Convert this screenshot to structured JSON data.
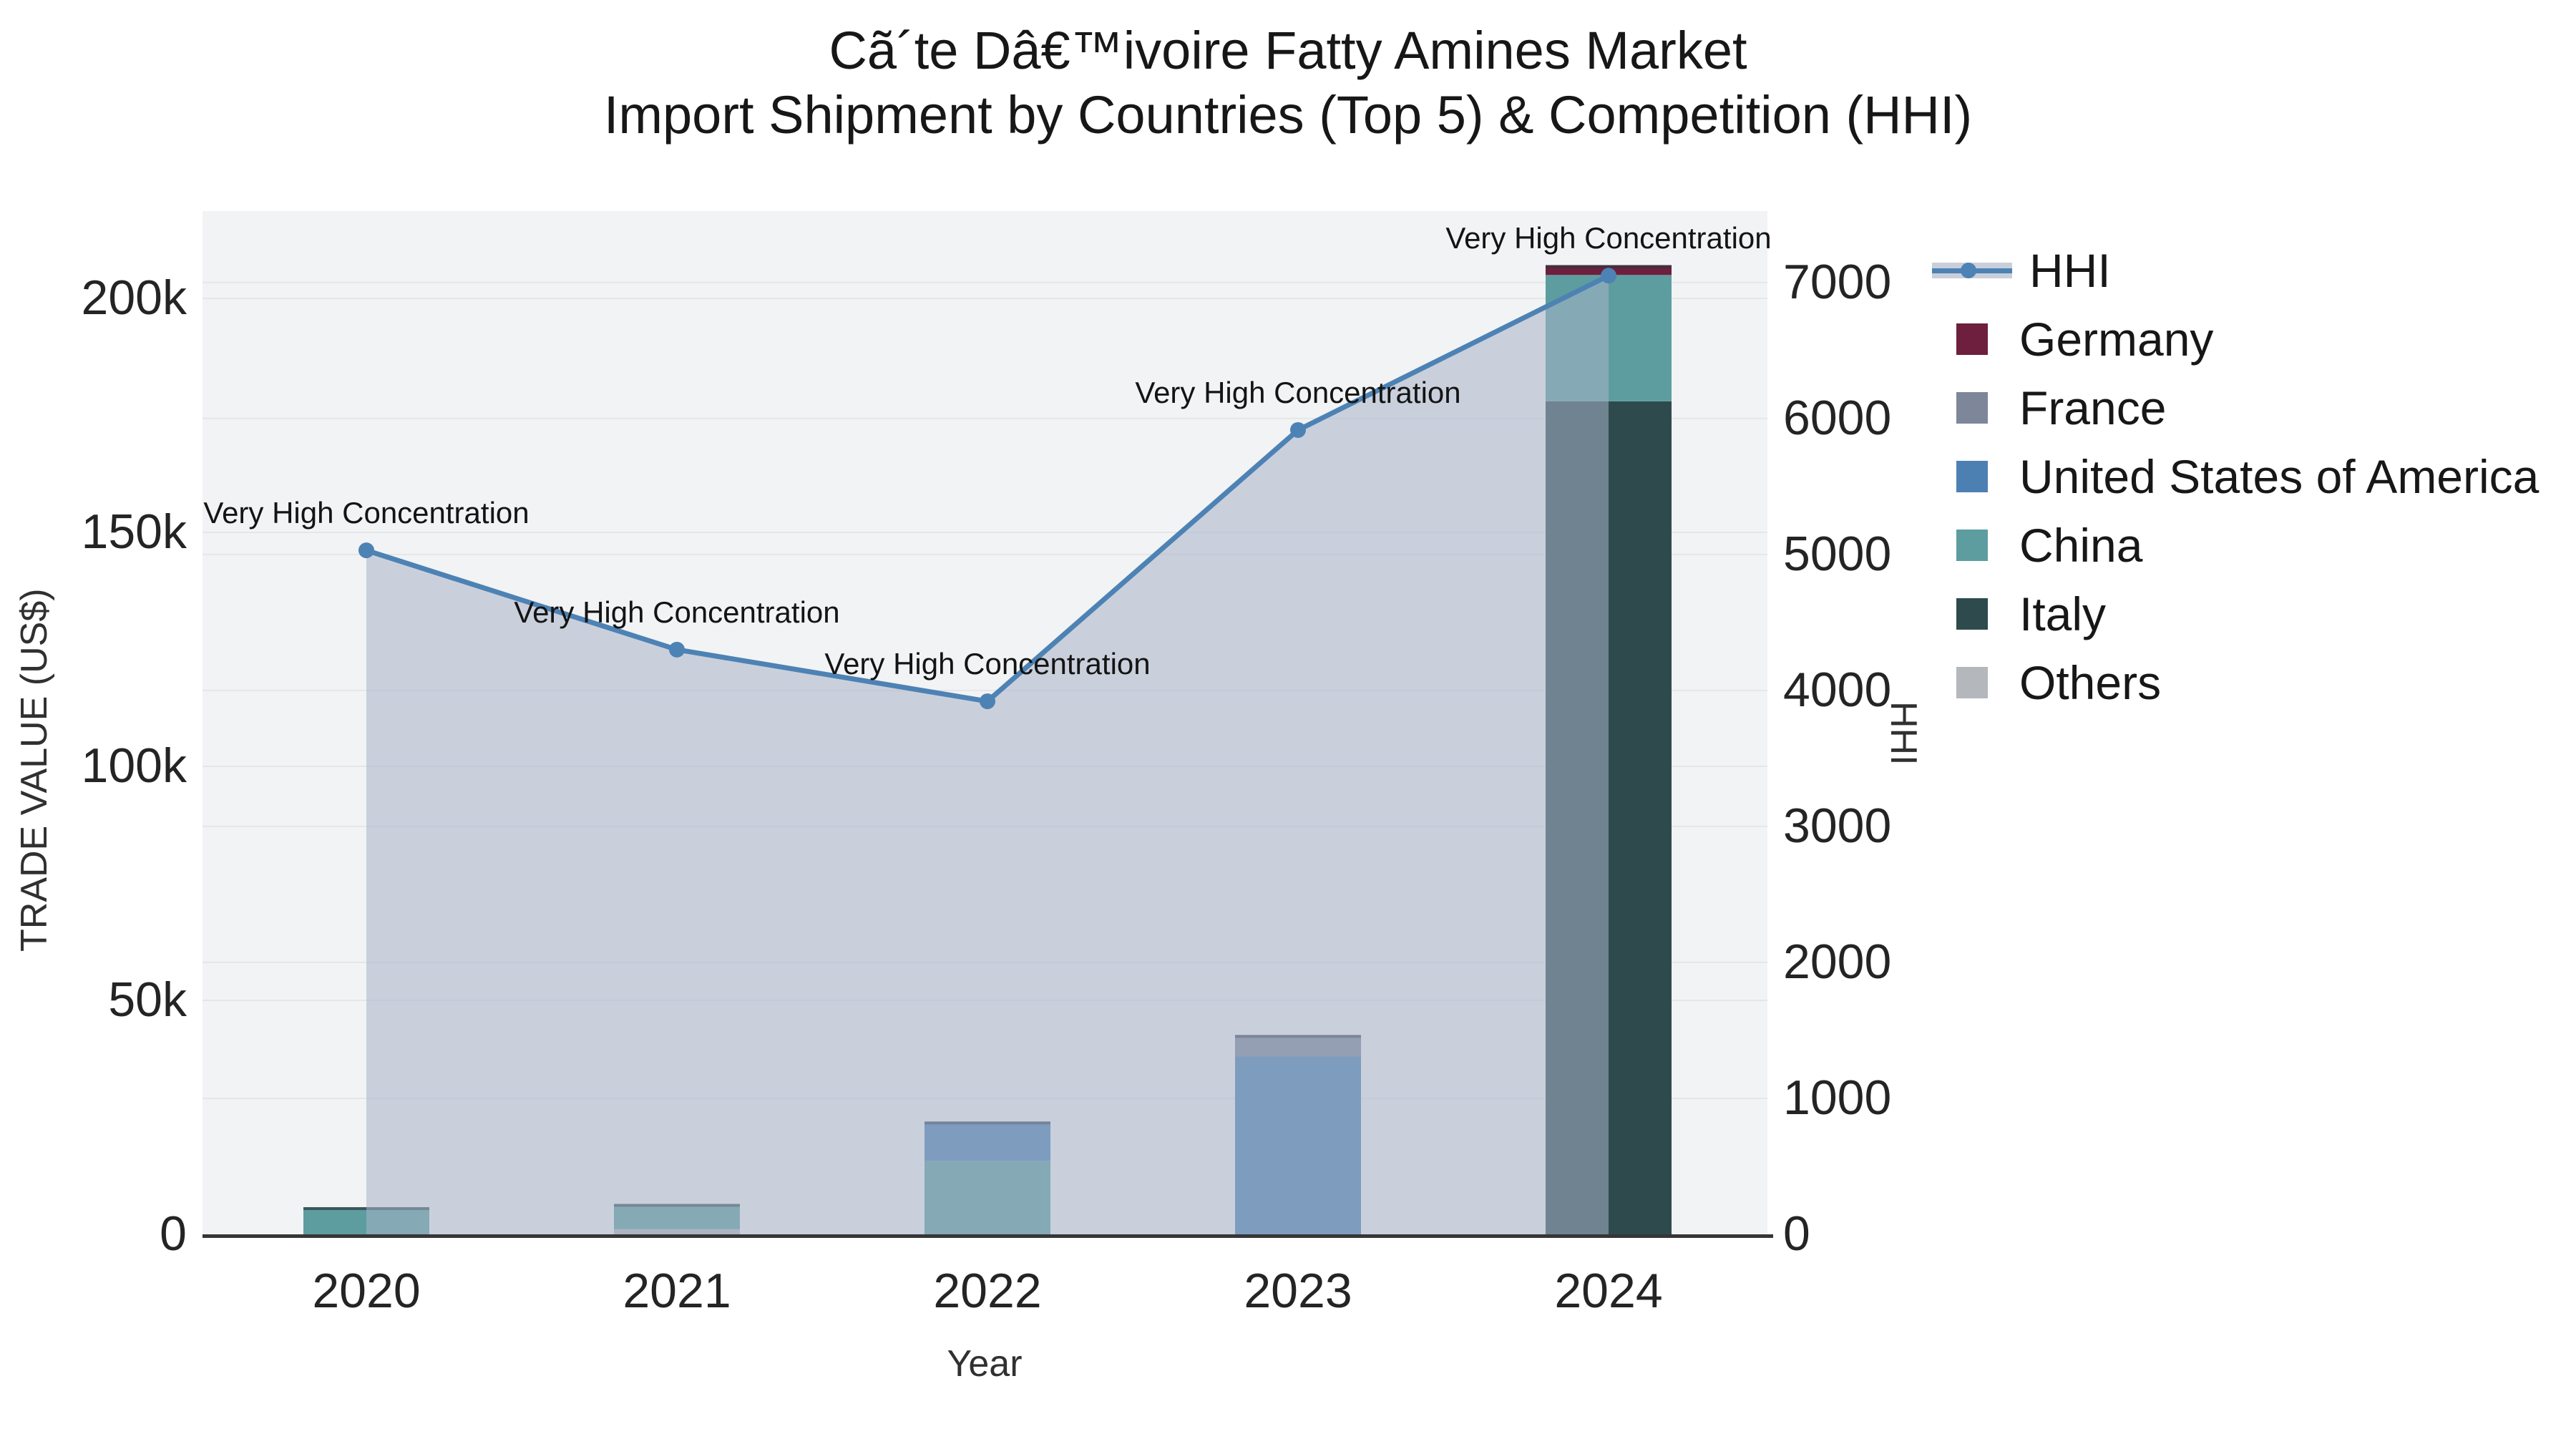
{
  "title": {
    "line1": "Cã´te Dâ€™ivoire Fatty Amines Market",
    "line2": "Import Shipment by Countries (Top 5) & Competition (HHI)"
  },
  "chart_data": {
    "type": "bar",
    "subtype": "stacked-bars-with-line-area",
    "categories": [
      "2020",
      "2021",
      "2022",
      "2023",
      "2024"
    ],
    "xlabel": "Year",
    "ylabel_left": "TRADE VALUE (US$)",
    "ylabel_right": "HHI",
    "y_left_ticks": [
      {
        "v": 0,
        "label": "0"
      },
      {
        "v": 50000,
        "label": "50k"
      },
      {
        "v": 100000,
        "label": "100k"
      },
      {
        "v": 150000,
        "label": "150k"
      },
      {
        "v": 200000,
        "label": "200k"
      }
    ],
    "y_right_ticks": [
      {
        "v": 0,
        "label": "0"
      },
      {
        "v": 1000,
        "label": "1000"
      },
      {
        "v": 2000,
        "label": "2000"
      },
      {
        "v": 3000,
        "label": "3000"
      },
      {
        "v": 4000,
        "label": "4000"
      },
      {
        "v": 5000,
        "label": "5000"
      },
      {
        "v": 6000,
        "label": "6000"
      },
      {
        "v": 7000,
        "label": "7000"
      }
    ],
    "y_left_max": 218650,
    "y_right_max": 7525,
    "grid_on": true,
    "legend_position": "right",
    "series": [
      {
        "name": "Others",
        "color": "#b4b8bc",
        "values": [
          0,
          1100,
          0,
          0,
          0
        ]
      },
      {
        "name": "Italy",
        "color": "#2e4a4d",
        "values": [
          0,
          0,
          0,
          0,
          178000
        ]
      },
      {
        "name": "China",
        "color": "#5d9da0",
        "values": [
          5800,
          5400,
          15700,
          0,
          27000
        ]
      },
      {
        "name": "United States of America",
        "color": "#4d80b2",
        "values": [
          0,
          0,
          8400,
          38000,
          0
        ]
      },
      {
        "name": "France",
        "color": "#7d8799",
        "values": [
          0,
          0,
          0,
          4600,
          0
        ]
      },
      {
        "name": "Germany",
        "color": "#6d1f3d",
        "values": [
          0,
          0,
          0,
          0,
          2100
        ]
      }
    ],
    "line_series": {
      "name": "HHI",
      "color": "#4d82b4",
      "area_fill": "rgba(168,179,201,0.55)",
      "values": [
        5030,
        4300,
        3920,
        5915,
        7050
      ]
    },
    "annotations": [
      {
        "x": "2020",
        "text": "Very High Concentration"
      },
      {
        "x": "2021",
        "text": "Very High Concentration"
      },
      {
        "x": "2022",
        "text": "Very High Concentration"
      },
      {
        "x": "2023",
        "text": "Very High Concentration"
      },
      {
        "x": "2024",
        "text": "Very High Concentration"
      }
    ]
  },
  "legend": {
    "items": [
      {
        "label": "HHI",
        "type": "line",
        "color": "#4d82b4"
      },
      {
        "label": "Germany",
        "type": "swatch",
        "color": "#6d1f3d"
      },
      {
        "label": "France",
        "type": "swatch",
        "color": "#7d8799"
      },
      {
        "label": "United States of America",
        "type": "swatch",
        "color": "#4d80b2"
      },
      {
        "label": "China",
        "type": "swatch",
        "color": "#5d9da0"
      },
      {
        "label": "Italy",
        "type": "swatch",
        "color": "#2e4a4d"
      },
      {
        "label": "Others",
        "type": "swatch",
        "color": "#b4b8bc"
      }
    ]
  },
  "style": {
    "plot_bg": "#f2f3f4",
    "grid_color": "#e4e6ea",
    "axis_line_color": "#363636",
    "bar_top_edge": "rgba(45,55,60,0.7)"
  }
}
